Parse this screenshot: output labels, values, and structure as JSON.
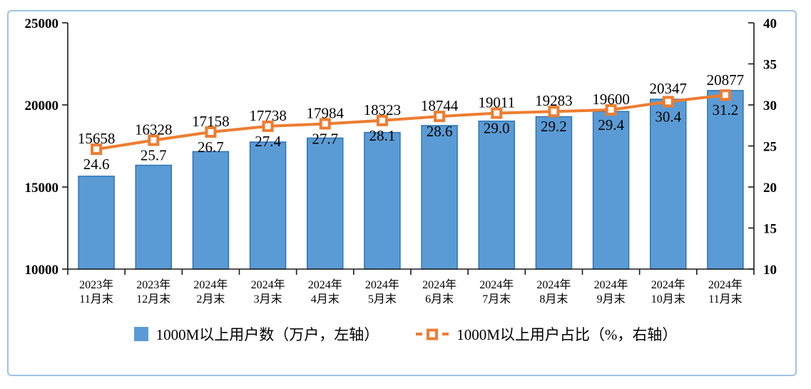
{
  "chart_data": {
    "type": "combo",
    "categories": [
      [
        "2023年",
        "11月末"
      ],
      [
        "2023年",
        "12月末"
      ],
      [
        "2024年",
        "2月末"
      ],
      [
        "2024年",
        "3月末"
      ],
      [
        "2024年",
        "4月末"
      ],
      [
        "2024年",
        "5月末"
      ],
      [
        "2024年",
        "6月末"
      ],
      [
        "2024年",
        "7月末"
      ],
      [
        "2024年",
        "8月末"
      ],
      [
        "2024年",
        "9月末"
      ],
      [
        "2024年",
        "10月末"
      ],
      [
        "2024年",
        "11月末"
      ]
    ],
    "series": [
      {
        "name": "1000M以上用户数（万户，左轴）",
        "type": "bar",
        "axis": "left",
        "values": [
          15658,
          16328,
          17158,
          17738,
          17984,
          18323,
          18744,
          19011,
          19283,
          19600,
          20347,
          20877
        ]
      },
      {
        "name": "1000M以上用户占比（%，右轴）",
        "type": "line",
        "axis": "right",
        "values": [
          24.6,
          25.7,
          26.7,
          27.4,
          27.7,
          28.1,
          28.6,
          29.0,
          29.2,
          29.4,
          30.4,
          31.2
        ],
        "labels": [
          "24.6",
          "25.7",
          "26.7",
          "27.4",
          "27.7",
          "28.1",
          "28.6",
          "29.0",
          "29.2",
          "29.4",
          "30.4",
          "31.2"
        ]
      }
    ],
    "left_axis": {
      "min": 10000,
      "max": 25000,
      "step": 5000,
      "ticks": [
        25000,
        20000,
        15000,
        10000
      ]
    },
    "right_axis": {
      "min": 10,
      "max": 40,
      "step": 5,
      "ticks": [
        40,
        35,
        30,
        25,
        20,
        15,
        10
      ]
    },
    "grid": false,
    "legend_position": "bottom"
  },
  "colors": {
    "bar_fill": "#5B9BD5",
    "bar_border": "#2E75B6",
    "line": "#ED7D31",
    "marker_fill": "#FFFFFF",
    "frame_border": "#9DC3E6",
    "axis": "#1a1a1a",
    "text": "#000000"
  }
}
